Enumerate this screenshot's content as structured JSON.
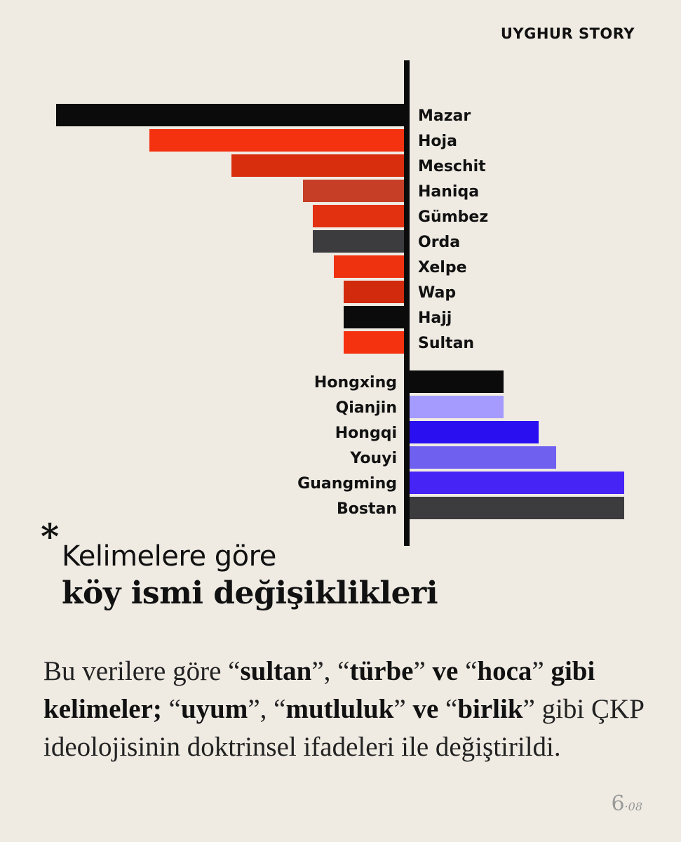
{
  "brand": "UYGHUR STORY",
  "chart_data": {
    "type": "bar",
    "orientation": "horizontal-diverging",
    "removed": {
      "categories": [
        "Mazar",
        "Hoja",
        "Meschit",
        "Haniqa",
        "Gümbez",
        "Orda",
        "Xelpe",
        "Wap",
        "Hajj",
        "Sultan"
      ],
      "values": [
        496,
        363,
        246,
        144,
        130,
        130,
        100,
        86,
        86,
        86
      ],
      "colors": [
        "#0b0b0b",
        "#f53210",
        "#d82e0e",
        "#c63e25",
        "#e23110",
        "#3c3c3e",
        "#ee3210",
        "#d12a0c",
        "#0b0b0b",
        "#f53210"
      ]
    },
    "added": {
      "categories": [
        "Hongxing",
        "Qianjin",
        "Hongqi",
        "Youyi",
        "Guangming",
        "Bostan"
      ],
      "values": [
        134,
        134,
        184,
        209,
        306,
        306
      ],
      "colors": [
        "#0b0b0b",
        "#a59bff",
        "#2a10f0",
        "#7060f0",
        "#4524f5",
        "#3c3c3e"
      ]
    }
  },
  "headline": {
    "star": "*",
    "line1": "Kelimelere göre",
    "line2": "köy ismi değişiklikleri"
  },
  "body": {
    "t1": "Bu verilere göre “",
    "b1": "sultan",
    "t2": "”, “",
    "b2": "türbe",
    "t3": "” ",
    "b3": "ve",
    "t4": " “",
    "b4": "hoca",
    "t5": "” ",
    "b5": "gibi kelimeler;",
    "t6": " “",
    "b6": "uyum",
    "t7": "”, “",
    "b7": "mutluluk",
    "t8": "” ",
    "b8": "ve",
    "t9": " “",
    "b9": "birlik",
    "t10": "” gibi ÇKP ideolojisinin doktrinsel ifadeleri ile değiştirildi."
  },
  "page": {
    "number": "6",
    "separator": "·",
    "total": "08"
  }
}
